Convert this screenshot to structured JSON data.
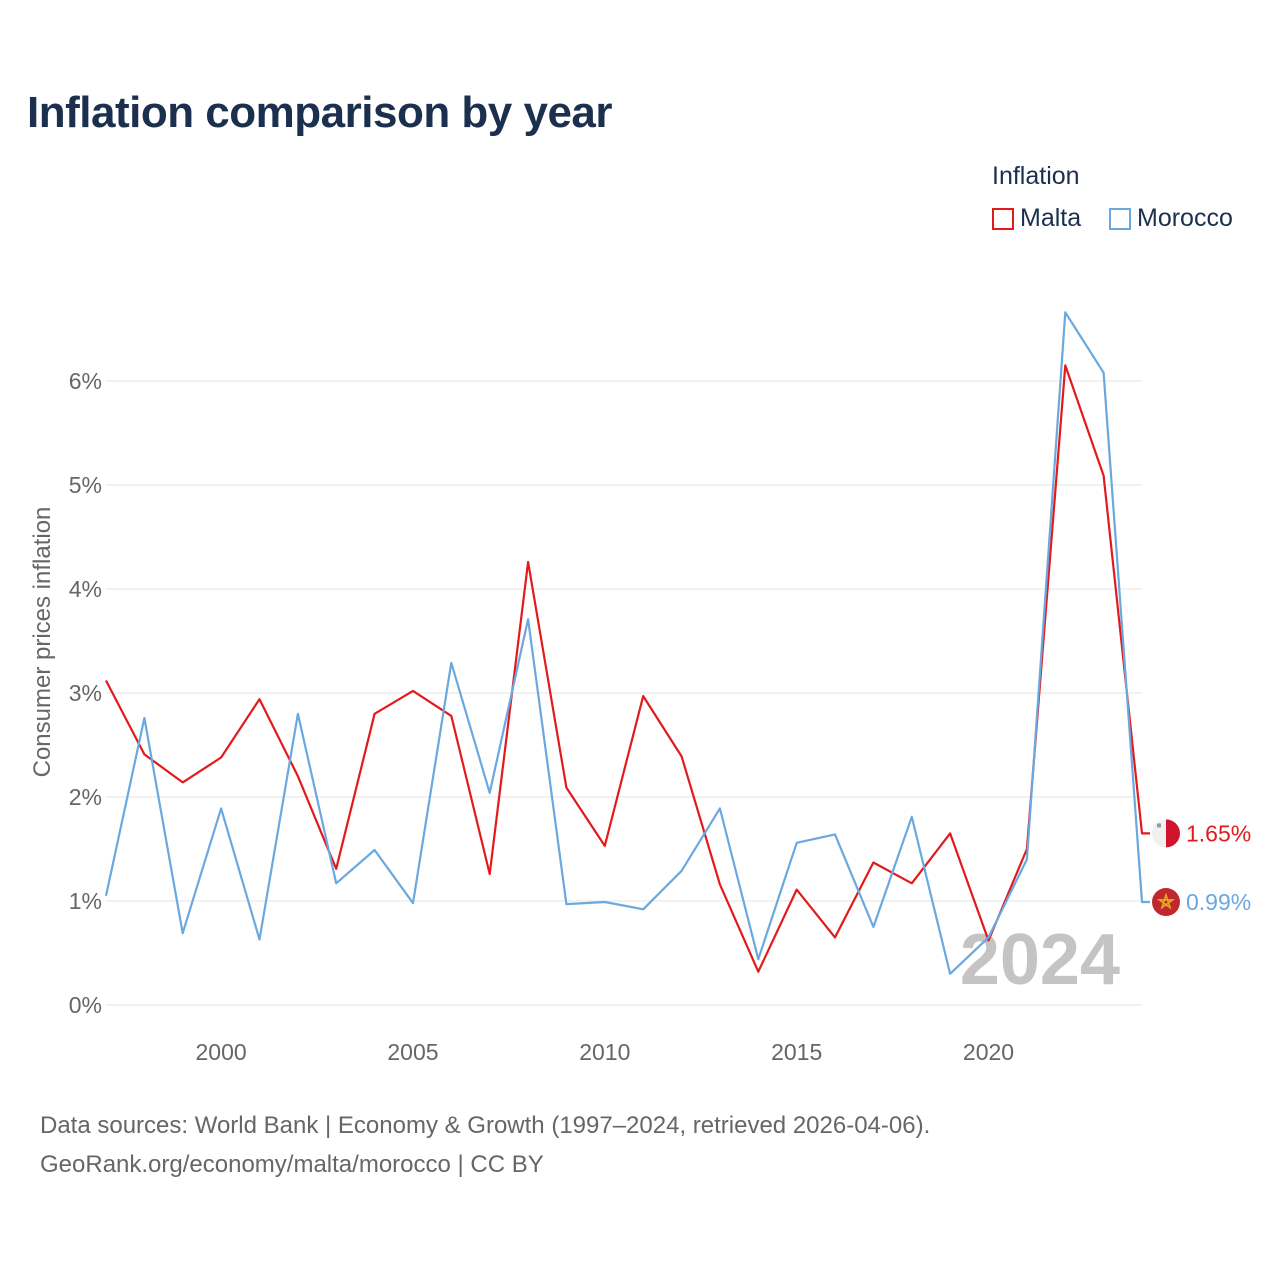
{
  "title": "Inflation comparison by year",
  "legend": {
    "title": "Inflation",
    "items": [
      {
        "label": "Malta",
        "color": "#e31a1c"
      },
      {
        "label": "Morocco",
        "color": "#6aa8e0"
      }
    ]
  },
  "sources": {
    "line1": "Data sources: World Bank | Economy & Growth (1997–2024, retrieved 2026-04-06).",
    "line2": "GeoRank.org/economy/malta/morocco | CC BY"
  },
  "chart_data": {
    "type": "line",
    "title": "Inflation comparison by year",
    "xlabel": "",
    "ylabel": "Consumer prices inflation",
    "xlim": [
      1997,
      2024
    ],
    "ylim": [
      0,
      6
    ],
    "x_ticks": [
      2000,
      2005,
      2010,
      2015,
      2020
    ],
    "y_ticks": [
      0,
      1,
      2,
      3,
      4,
      5,
      6
    ],
    "y_tick_labels": [
      "0%",
      "1%",
      "2%",
      "3%",
      "4%",
      "5%",
      "6%"
    ],
    "year_watermark": "2024",
    "x": [
      1997,
      1998,
      1999,
      2000,
      2001,
      2002,
      2003,
      2004,
      2005,
      2006,
      2007,
      2008,
      2009,
      2010,
      2011,
      2012,
      2013,
      2014,
      2015,
      2016,
      2017,
      2018,
      2019,
      2020,
      2021,
      2022,
      2023,
      2024
    ],
    "series": [
      {
        "name": "Malta",
        "color": "#e31a1c",
        "end_label": "1.65%",
        "flag": "malta",
        "values": [
          3.12,
          2.41,
          2.14,
          2.38,
          2.94,
          2.2,
          1.31,
          2.8,
          3.02,
          2.78,
          1.26,
          4.26,
          2.09,
          1.53,
          2.97,
          2.39,
          1.16,
          0.32,
          1.11,
          0.65,
          1.37,
          1.17,
          1.65,
          0.62,
          1.5,
          6.15,
          5.09,
          1.65
        ]
      },
      {
        "name": "Morocco",
        "color": "#6aa8e0",
        "end_label": "0.99%",
        "flag": "morocco",
        "values": [
          1.05,
          2.76,
          0.69,
          1.89,
          0.63,
          2.8,
          1.17,
          1.49,
          0.98,
          3.29,
          2.04,
          3.71,
          0.97,
          0.99,
          0.92,
          1.29,
          1.89,
          0.44,
          1.56,
          1.64,
          0.75,
          1.81,
          0.3,
          0.65,
          1.4,
          6.66,
          6.08,
          0.99
        ]
      }
    ]
  }
}
